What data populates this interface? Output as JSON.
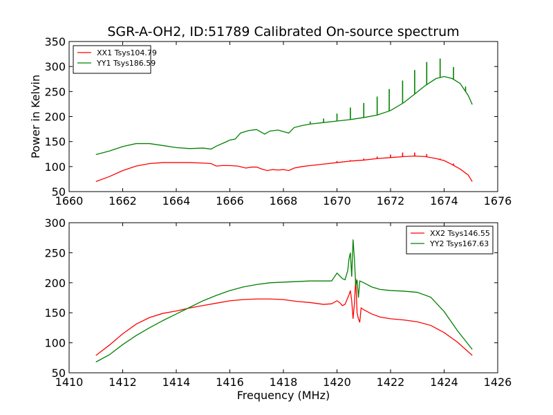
{
  "figure": {
    "title": "SGR-A-OH2, ID:51789 Calibrated On-source spectrum",
    "xlabel": "Frequency (MHz)"
  },
  "chart_data": [
    {
      "type": "line",
      "title": "SGR-A-OH2, ID:51789 Calibrated On-source spectrum",
      "xlabel": "",
      "ylabel": "Power in Kelvin",
      "xlim": [
        1660,
        1676
      ],
      "ylim": [
        50,
        350
      ],
      "xticks": [
        1660,
        1662,
        1664,
        1666,
        1668,
        1670,
        1672,
        1674,
        1676
      ],
      "yticks": [
        50,
        100,
        150,
        200,
        250,
        300,
        350
      ],
      "grid": false,
      "legend": "top-left",
      "series": [
        {
          "name": "XX1 Tsys104.79",
          "color": "#ff0000",
          "points": [
            [
              1661.0,
              70
            ],
            [
              1661.5,
              80
            ],
            [
              1662.0,
              92
            ],
            [
              1662.5,
              101
            ],
            [
              1663.0,
              106
            ],
            [
              1663.5,
              108
            ],
            [
              1664.0,
              108
            ],
            [
              1664.5,
              108
            ],
            [
              1665.0,
              107
            ],
            [
              1665.3,
              106
            ],
            [
              1665.5,
              101
            ],
            [
              1665.7,
              102
            ],
            [
              1666.0,
              102
            ],
            [
              1666.3,
              101
            ],
            [
              1666.6,
              97
            ],
            [
              1666.8,
              99
            ],
            [
              1667.0,
              99
            ],
            [
              1667.2,
              95
            ],
            [
              1667.4,
              92
            ],
            [
              1667.6,
              94
            ],
            [
              1667.8,
              93
            ],
            [
              1668.0,
              94
            ],
            [
              1668.2,
              92
            ],
            [
              1668.4,
              97
            ],
            [
              1668.7,
              100
            ],
            [
              1669.0,
              102
            ],
            [
              1669.5,
              105
            ],
            [
              1670.0,
              108
            ],
            [
              1670.5,
              111
            ],
            [
              1671.0,
              113
            ],
            [
              1671.5,
              116
            ],
            [
              1672.0,
              118
            ],
            [
              1672.5,
              120
            ],
            [
              1672.9,
              121
            ],
            [
              1673.3,
              120
            ],
            [
              1673.7,
              116
            ],
            [
              1674.0,
              112
            ],
            [
              1674.3,
              104
            ],
            [
              1674.6,
              95
            ],
            [
              1674.9,
              83
            ],
            [
              1675.05,
              70
            ]
          ],
          "spikes": [
            [
              1670.0,
              111
            ],
            [
              1670.5,
              113
            ],
            [
              1671.0,
              116
            ],
            [
              1671.5,
              120
            ],
            [
              1672.0,
              124
            ],
            [
              1672.45,
              128
            ],
            [
              1672.9,
              128
            ],
            [
              1673.35,
              125
            ],
            [
              1673.85,
              116
            ],
            [
              1674.35,
              106
            ],
            [
              1674.8,
              87
            ]
          ]
        },
        {
          "name": "YY1 Tsys186.59",
          "color": "#008000",
          "points": [
            [
              1661.0,
              124
            ],
            [
              1661.5,
              131
            ],
            [
              1662.0,
              140
            ],
            [
              1662.5,
              146
            ],
            [
              1663.0,
              146
            ],
            [
              1663.5,
              142
            ],
            [
              1664.0,
              138
            ],
            [
              1664.5,
              136
            ],
            [
              1665.0,
              137
            ],
            [
              1665.3,
              135
            ],
            [
              1665.5,
              141
            ],
            [
              1665.8,
              148
            ],
            [
              1666.0,
              153
            ],
            [
              1666.2,
              155
            ],
            [
              1666.4,
              167
            ],
            [
              1666.7,
              172
            ],
            [
              1667.0,
              174
            ],
            [
              1667.2,
              168
            ],
            [
              1667.3,
              165
            ],
            [
              1667.5,
              171
            ],
            [
              1667.8,
              173
            ],
            [
              1668.0,
              170
            ],
            [
              1668.2,
              167
            ],
            [
              1668.4,
              178
            ],
            [
              1668.7,
              182
            ],
            [
              1669.0,
              185
            ],
            [
              1669.5,
              188
            ],
            [
              1670.0,
              191
            ],
            [
              1670.5,
              194
            ],
            [
              1671.0,
              198
            ],
            [
              1671.5,
              203
            ],
            [
              1672.0,
              212
            ],
            [
              1672.5,
              228
            ],
            [
              1672.9,
              245
            ],
            [
              1673.3,
              262
            ],
            [
              1673.7,
              276
            ],
            [
              1674.0,
              280
            ],
            [
              1674.3,
              276
            ],
            [
              1674.6,
              266
            ],
            [
              1674.9,
              242
            ],
            [
              1675.05,
              224
            ]
          ],
          "spikes": [
            [
              1669.0,
              190
            ],
            [
              1669.5,
              196
            ],
            [
              1670.0,
              206
            ],
            [
              1670.5,
              218
            ],
            [
              1671.0,
              227
            ],
            [
              1671.5,
              240
            ],
            [
              1671.95,
              255
            ],
            [
              1672.45,
              272
            ],
            [
              1672.9,
              293
            ],
            [
              1673.35,
              309
            ],
            [
              1673.85,
              316
            ],
            [
              1674.35,
              299
            ],
            [
              1674.8,
              260
            ]
          ]
        }
      ]
    },
    {
      "type": "line",
      "title": "",
      "xlabel": "Frequency (MHz)",
      "ylabel": "",
      "xlim": [
        1410,
        1426
      ],
      "ylim": [
        50,
        300
      ],
      "xticks": [
        1410,
        1412,
        1414,
        1416,
        1418,
        1420,
        1422,
        1424,
        1426
      ],
      "yticks": [
        50,
        100,
        150,
        200,
        250,
        300
      ],
      "grid": false,
      "legend": "top-right",
      "series": [
        {
          "name": "XX2 Tsys146.55",
          "color": "#ff0000",
          "points": [
            [
              1411.0,
              79
            ],
            [
              1411.5,
              96
            ],
            [
              1412.0,
              115
            ],
            [
              1412.5,
              131
            ],
            [
              1413.0,
              142
            ],
            [
              1413.5,
              149
            ],
            [
              1414.0,
              153
            ],
            [
              1414.5,
              158
            ],
            [
              1415.0,
              162
            ],
            [
              1415.5,
              166
            ],
            [
              1416.0,
              170
            ],
            [
              1416.5,
              172
            ],
            [
              1417.0,
              173
            ],
            [
              1417.5,
              173
            ],
            [
              1418.0,
              172
            ],
            [
              1418.5,
              169
            ],
            [
              1419.0,
              167
            ],
            [
              1419.5,
              164
            ],
            [
              1419.8,
              165
            ],
            [
              1420.0,
              170
            ],
            [
              1420.1,
              167
            ],
            [
              1420.2,
              162
            ],
            [
              1420.3,
              164
            ],
            [
              1420.45,
              180
            ],
            [
              1420.5,
              187
            ],
            [
              1420.55,
              170
            ],
            [
              1420.6,
              140
            ],
            [
              1420.65,
              165
            ],
            [
              1420.7,
              207
            ],
            [
              1420.75,
              150
            ],
            [
              1420.8,
              140
            ],
            [
              1420.85,
              134
            ],
            [
              1420.9,
              158
            ],
            [
              1421.0,
              155
            ],
            [
              1421.3,
              148
            ],
            [
              1421.6,
              143
            ],
            [
              1422.0,
              140
            ],
            [
              1422.5,
              138
            ],
            [
              1423.0,
              135
            ],
            [
              1423.5,
              129
            ],
            [
              1424.0,
              117
            ],
            [
              1424.5,
              101
            ],
            [
              1425.05,
              79
            ]
          ]
        },
        {
          "name": "YY2 Tsys167.63",
          "color": "#008000",
          "points": [
            [
              1411.0,
              68
            ],
            [
              1411.5,
              80
            ],
            [
              1412.0,
              97
            ],
            [
              1412.5,
              112
            ],
            [
              1413.0,
              125
            ],
            [
              1413.5,
              137
            ],
            [
              1414.0,
              148
            ],
            [
              1414.5,
              159
            ],
            [
              1415.0,
              170
            ],
            [
              1415.5,
              179
            ],
            [
              1416.0,
              187
            ],
            [
              1416.5,
              193
            ],
            [
              1417.0,
              197
            ],
            [
              1417.5,
              200
            ],
            [
              1418.0,
              201
            ],
            [
              1418.5,
              202
            ],
            [
              1419.0,
              203
            ],
            [
              1419.5,
              203
            ],
            [
              1419.8,
              203
            ],
            [
              1420.0,
              216
            ],
            [
              1420.2,
              207
            ],
            [
              1420.3,
              205
            ],
            [
              1420.4,
              220
            ],
            [
              1420.45,
              240
            ],
            [
              1420.5,
              250
            ],
            [
              1420.55,
              210
            ],
            [
              1420.6,
              272
            ],
            [
              1420.65,
              240
            ],
            [
              1420.7,
              195
            ],
            [
              1420.75,
              205
            ],
            [
              1420.8,
              175
            ],
            [
              1420.85,
              203
            ],
            [
              1421.0,
              200
            ],
            [
              1421.3,
              193
            ],
            [
              1421.6,
              189
            ],
            [
              1422.0,
              187
            ],
            [
              1422.5,
              186
            ],
            [
              1423.0,
              184
            ],
            [
              1423.5,
              176
            ],
            [
              1424.0,
              152
            ],
            [
              1424.5,
              120
            ],
            [
              1425.05,
              89
            ]
          ]
        }
      ]
    }
  ]
}
